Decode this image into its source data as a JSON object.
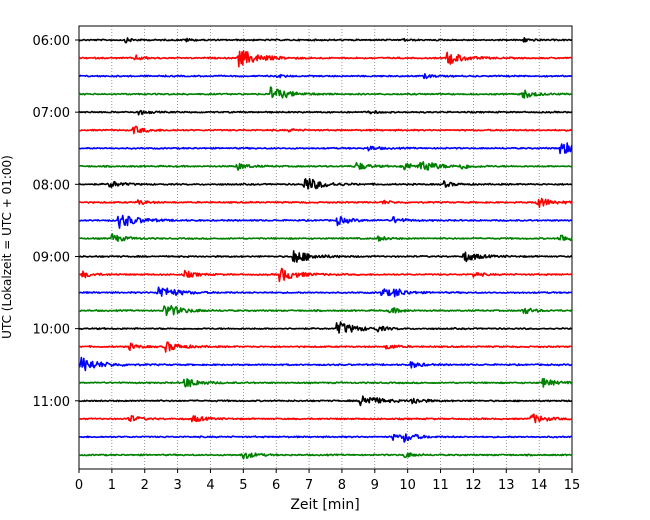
{
  "chart_data": {
    "type": "line",
    "title": "",
    "xlabel": "Zeit  [min]",
    "ylabel": "UTC (Lokalzeit = UTC + 01:00)",
    "xlim": [
      0,
      15
    ],
    "x_ticks": [
      0,
      1,
      2,
      3,
      4,
      5,
      6,
      7,
      8,
      9,
      10,
      11,
      12,
      13,
      14,
      15
    ],
    "y_tick_labels": [
      "06:00",
      "07:00",
      "08:00",
      "09:00",
      "10:00",
      "11:00"
    ],
    "y_tick_rows": [
      0,
      4,
      8,
      12,
      16,
      20
    ],
    "grid": "vertical dotted at each minute",
    "legend": "none",
    "rows_start": "06:00",
    "row_interval_min": 15,
    "colors": [
      "#000000",
      "#ff0000",
      "#0000ff",
      "#008000"
    ],
    "series": [
      {
        "start": "06:00",
        "color": "#000000",
        "events": [
          {
            "x": 1.4,
            "amp": 0.3
          },
          {
            "x": 3.2,
            "amp": 0.25
          },
          {
            "x": 9.8,
            "amp": 0.2
          },
          {
            "x": 13.5,
            "amp": 0.3
          }
        ]
      },
      {
        "start": "06:15",
        "color": "#ff0000",
        "events": [
          {
            "x": 1.7,
            "amp": 0.35
          },
          {
            "x": 4.85,
            "amp": 1.2
          },
          {
            "x": 11.2,
            "amp": 0.9
          }
        ]
      },
      {
        "start": "06:30",
        "color": "#0000ff",
        "events": [
          {
            "x": 6.0,
            "amp": 0.25
          },
          {
            "x": 10.5,
            "amp": 0.3
          }
        ]
      },
      {
        "start": "06:45",
        "color": "#008000",
        "events": [
          {
            "x": 5.8,
            "amp": 1.0
          },
          {
            "x": 13.5,
            "amp": 0.6
          }
        ]
      },
      {
        "start": "07:00",
        "color": "#000000",
        "events": [
          {
            "x": 1.8,
            "amp": 0.35
          },
          {
            "x": 8.8,
            "amp": 0.25
          }
        ]
      },
      {
        "start": "07:15",
        "color": "#ff0000",
        "events": [
          {
            "x": 1.65,
            "amp": 0.55
          },
          {
            "x": 6.4,
            "amp": 0.2
          }
        ]
      },
      {
        "start": "07:30",
        "color": "#0000ff",
        "events": [
          {
            "x": 8.8,
            "amp": 0.35
          },
          {
            "x": 14.65,
            "amp": 1.0
          }
        ]
      },
      {
        "start": "07:45",
        "color": "#008000",
        "events": [
          {
            "x": 4.8,
            "amp": 0.5
          },
          {
            "x": 8.4,
            "amp": 0.6
          },
          {
            "x": 9.8,
            "amp": 0.6
          },
          {
            "x": 10.4,
            "amp": 0.85
          },
          {
            "x": 11.6,
            "amp": 0.4
          }
        ]
      },
      {
        "start": "08:00",
        "color": "#000000",
        "events": [
          {
            "x": 0.9,
            "amp": 0.55
          },
          {
            "x": 6.85,
            "amp": 1.05
          },
          {
            "x": 11.1,
            "amp": 0.4
          }
        ]
      },
      {
        "start": "08:15",
        "color": "#ff0000",
        "events": [
          {
            "x": 1.8,
            "amp": 0.35
          },
          {
            "x": 9.2,
            "amp": 0.3
          },
          {
            "x": 13.9,
            "amp": 0.8
          }
        ]
      },
      {
        "start": "08:30",
        "color": "#0000ff",
        "events": [
          {
            "x": 1.2,
            "amp": 1.05
          },
          {
            "x": 7.85,
            "amp": 0.6
          },
          {
            "x": 9.55,
            "amp": 0.45
          }
        ]
      },
      {
        "start": "08:45",
        "color": "#008000",
        "events": [
          {
            "x": 1.0,
            "amp": 0.6
          },
          {
            "x": 9.1,
            "amp": 0.35
          },
          {
            "x": 14.6,
            "amp": 0.6
          }
        ]
      },
      {
        "start": "09:00",
        "color": "#000000",
        "events": [
          {
            "x": 6.5,
            "amp": 1.0
          },
          {
            "x": 11.7,
            "amp": 0.75
          }
        ]
      },
      {
        "start": "09:15",
        "color": "#ff0000",
        "events": [
          {
            "x": 0.1,
            "amp": 0.45
          },
          {
            "x": 3.2,
            "amp": 0.5
          },
          {
            "x": 6.1,
            "amp": 0.95
          },
          {
            "x": 12.0,
            "amp": 0.35
          }
        ]
      },
      {
        "start": "09:30",
        "color": "#0000ff",
        "events": [
          {
            "x": 2.4,
            "amp": 1.0
          },
          {
            "x": 9.2,
            "amp": 0.6
          },
          {
            "x": 9.6,
            "amp": 0.5
          }
        ]
      },
      {
        "start": "09:45",
        "color": "#008000",
        "events": [
          {
            "x": 2.6,
            "amp": 0.95
          },
          {
            "x": 9.45,
            "amp": 0.45
          },
          {
            "x": 13.5,
            "amp": 0.5
          }
        ]
      },
      {
        "start": "10:00",
        "color": "#000000",
        "events": [
          {
            "x": 7.85,
            "amp": 1.0
          },
          {
            "x": 9.05,
            "amp": 0.35
          }
        ]
      },
      {
        "start": "10:15",
        "color": "#ff0000",
        "events": [
          {
            "x": 1.5,
            "amp": 0.45
          },
          {
            "x": 2.6,
            "amp": 0.75
          },
          {
            "x": 9.35,
            "amp": 0.4
          }
        ]
      },
      {
        "start": "10:30",
        "color": "#0000ff",
        "events": [
          {
            "x": 0.05,
            "amp": 1.05
          },
          {
            "x": 10.1,
            "amp": 0.45
          }
        ]
      },
      {
        "start": "10:45",
        "color": "#008000",
        "events": [
          {
            "x": 3.2,
            "amp": 0.75
          },
          {
            "x": 14.1,
            "amp": 0.6
          }
        ]
      },
      {
        "start": "11:00",
        "color": "#000000",
        "events": [
          {
            "x": 8.55,
            "amp": 0.95
          },
          {
            "x": 10.1,
            "amp": 0.5
          }
        ]
      },
      {
        "start": "11:15",
        "color": "#ff0000",
        "events": [
          {
            "x": 1.5,
            "amp": 0.5
          },
          {
            "x": 3.45,
            "amp": 0.5
          },
          {
            "x": 13.75,
            "amp": 0.7
          }
        ]
      },
      {
        "start": "11:30",
        "color": "#0000ff",
        "events": [
          {
            "x": 9.55,
            "amp": 0.4
          },
          {
            "x": 9.9,
            "amp": 0.6
          }
        ]
      },
      {
        "start": "11:45",
        "color": "#008000",
        "events": [
          {
            "x": 4.95,
            "amp": 0.6
          },
          {
            "x": 9.9,
            "amp": 0.4
          }
        ]
      }
    ]
  }
}
